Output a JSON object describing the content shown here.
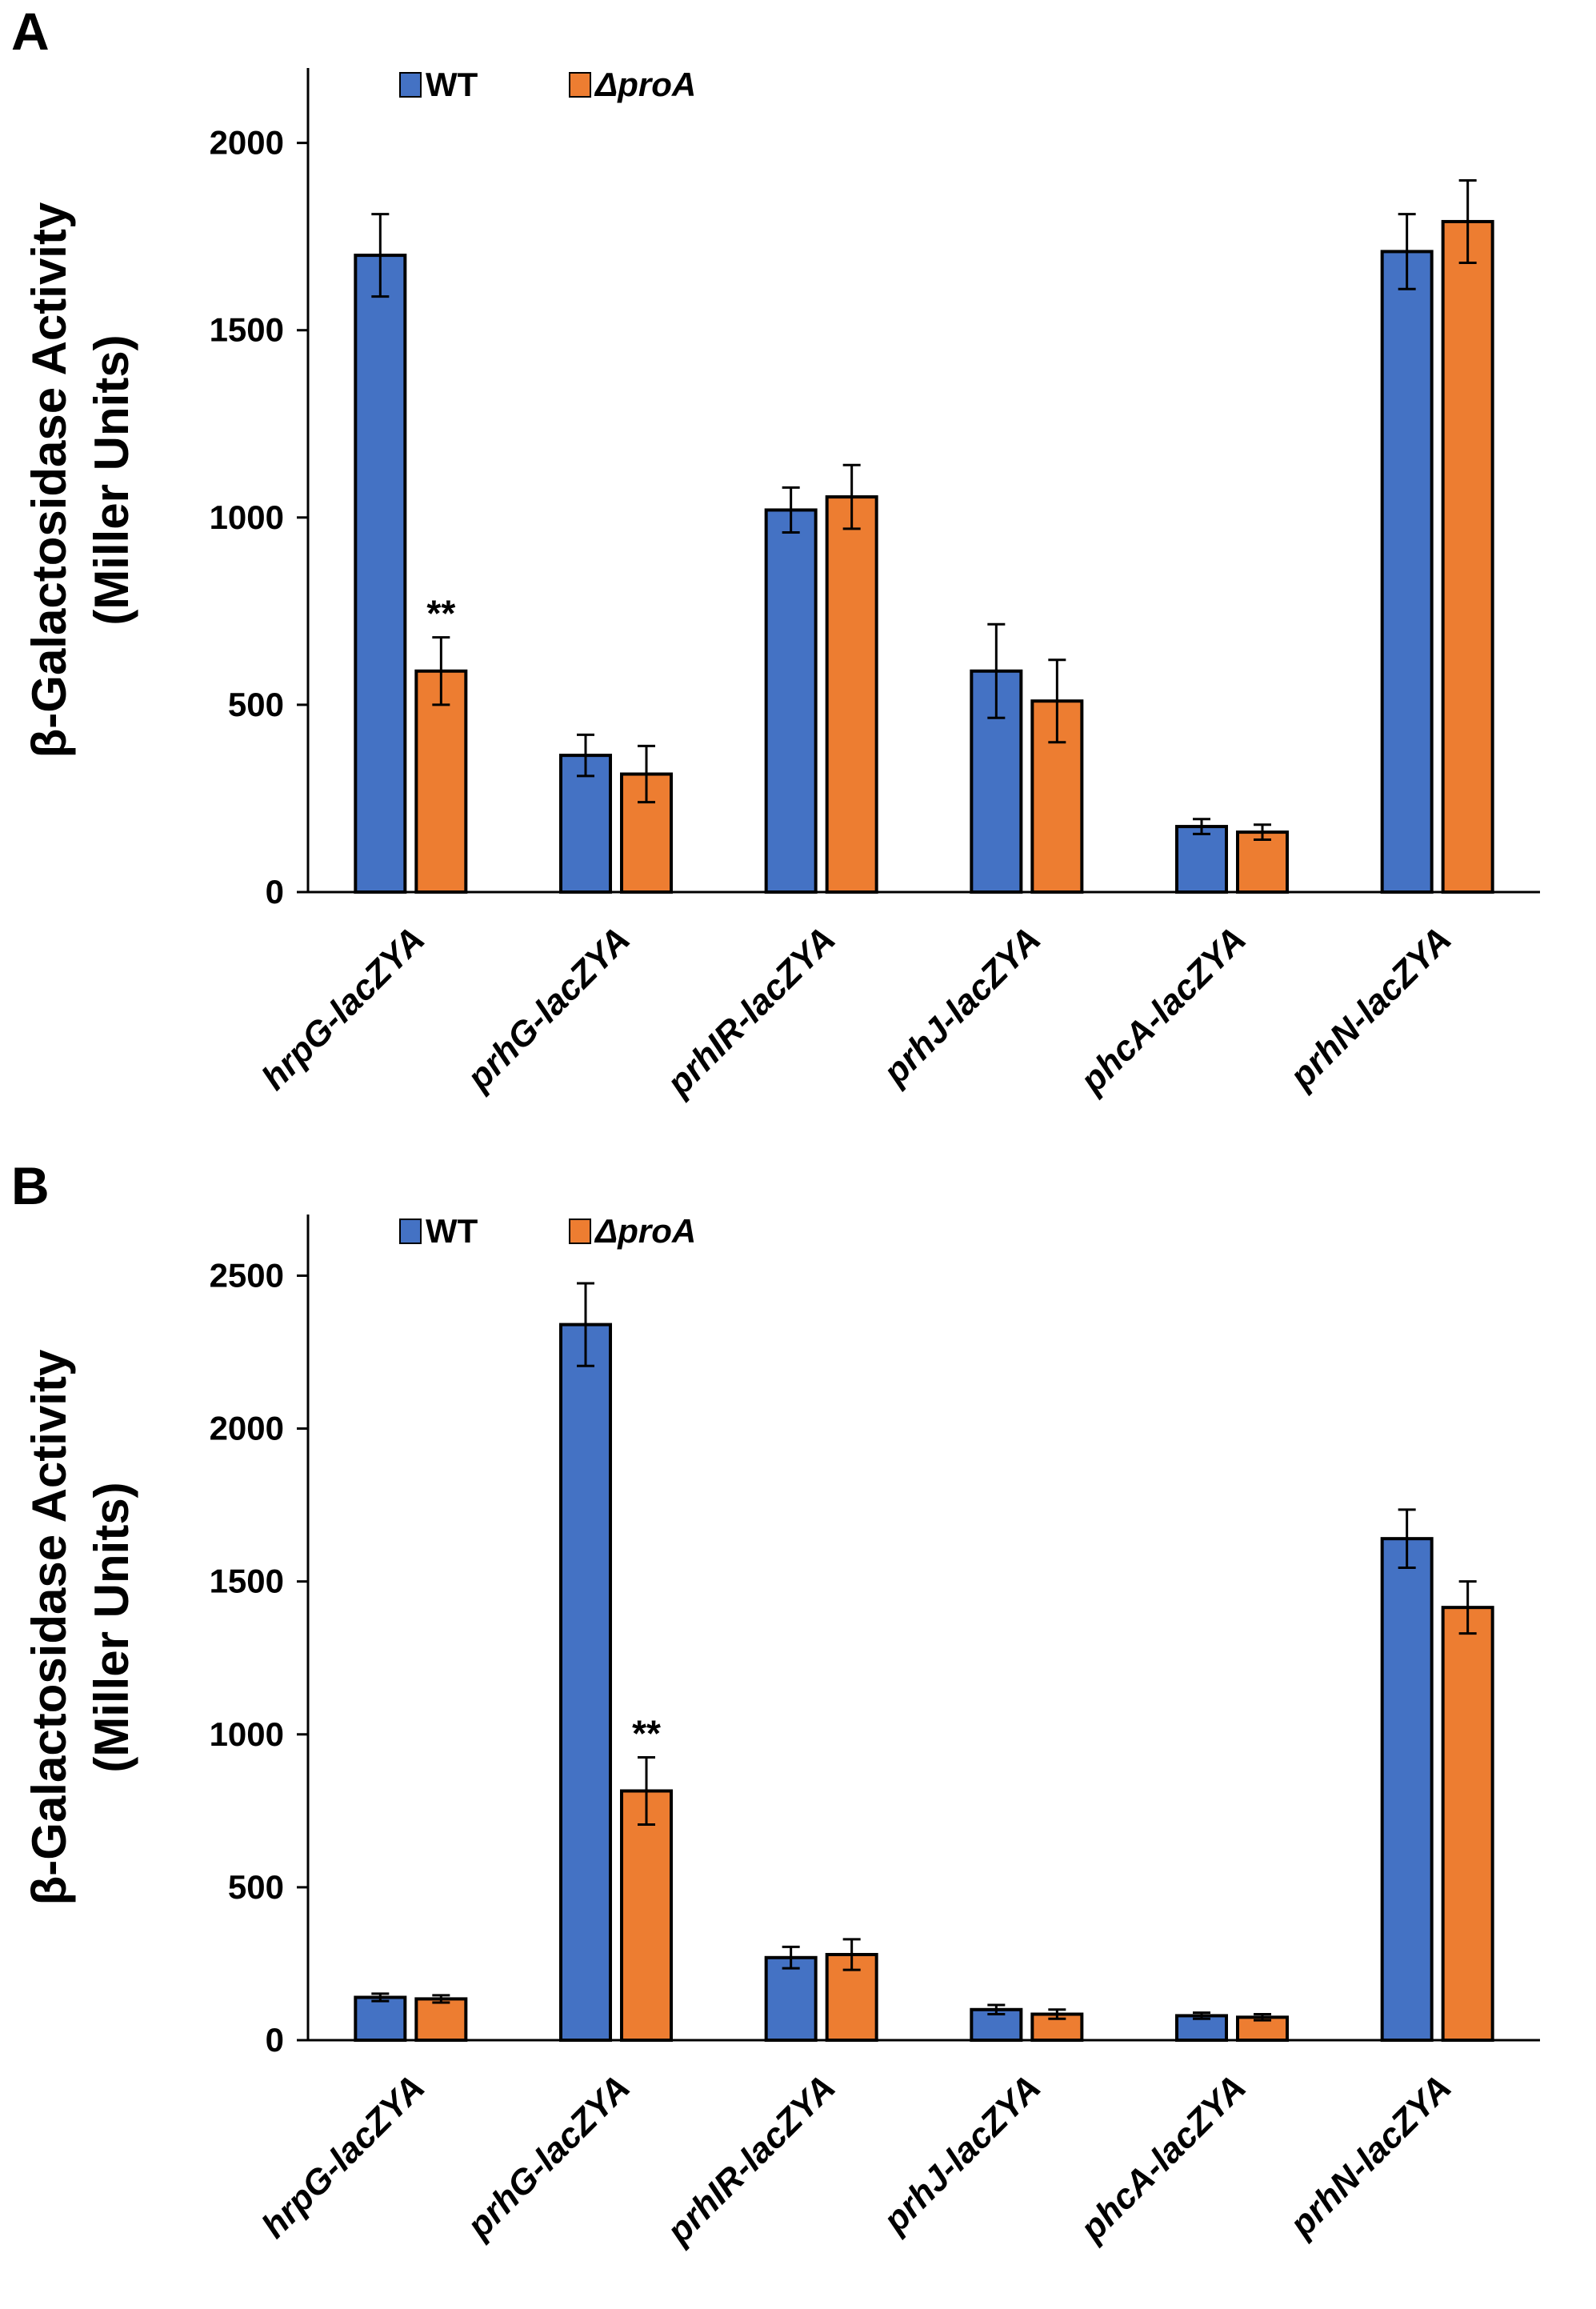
{
  "colors": {
    "wt": "#4472c4",
    "mutant": "#ed7d31",
    "axis": "#000000"
  },
  "chart_data": [
    {
      "panel": "A",
      "type": "bar",
      "ylabel_line1": "β-Galactosidase Activity",
      "ylabel_line2": "(Miller Units)",
      "ylim": [
        0,
        2200
      ],
      "yticks": [
        "0",
        "500",
        "1000",
        "1500",
        "2000"
      ],
      "ytick_values": [
        0,
        500,
        1000,
        1500,
        2000
      ],
      "categories": [
        "hrpG-lacZYA",
        "prhG-lacZYA",
        "prhIR-lacZYA",
        "prhJ-lacZYA",
        "phcA-lacZYA",
        "prhN-lacZYA"
      ],
      "series": [
        {
          "name": "WT",
          "values": [
            1700,
            365,
            1020,
            590,
            175,
            1710
          ],
          "errors": [
            110,
            55,
            60,
            125,
            20,
            100
          ]
        },
        {
          "name": "ΔproA",
          "values": [
            590,
            315,
            1055,
            510,
            160,
            1790
          ],
          "errors": [
            90,
            75,
            85,
            110,
            20,
            110
          ]
        }
      ],
      "annotations": [
        {
          "category_index": 0,
          "series_index": 1,
          "text": "**"
        }
      ]
    },
    {
      "panel": "B",
      "type": "bar",
      "ylabel_line1": "β-Galactosidase Activity",
      "ylabel_line2": "(Miller Units)",
      "ylim": [
        0,
        2700
      ],
      "yticks": [
        "0",
        "500",
        "1000",
        "1500",
        "2000",
        "2500"
      ],
      "ytick_values": [
        0,
        500,
        1000,
        1500,
        2000,
        2500
      ],
      "categories": [
        "hrpG-lacZYA",
        "prhG-lacZYA",
        "prhIR-lacZYA",
        "prhJ-lacZYA",
        "phcA-lacZYA",
        "prhN-lacZYA"
      ],
      "series": [
        {
          "name": "WT",
          "values": [
            140,
            2340,
            270,
            100,
            80,
            1640
          ],
          "errors": [
            12,
            135,
            35,
            15,
            10,
            95
          ]
        },
        {
          "name": "ΔproA",
          "values": [
            135,
            815,
            280,
            85,
            75,
            1415
          ],
          "errors": [
            12,
            110,
            50,
            15,
            10,
            85
          ]
        }
      ],
      "annotations": [
        {
          "category_index": 1,
          "series_index": 1,
          "text": "**"
        }
      ]
    }
  ]
}
